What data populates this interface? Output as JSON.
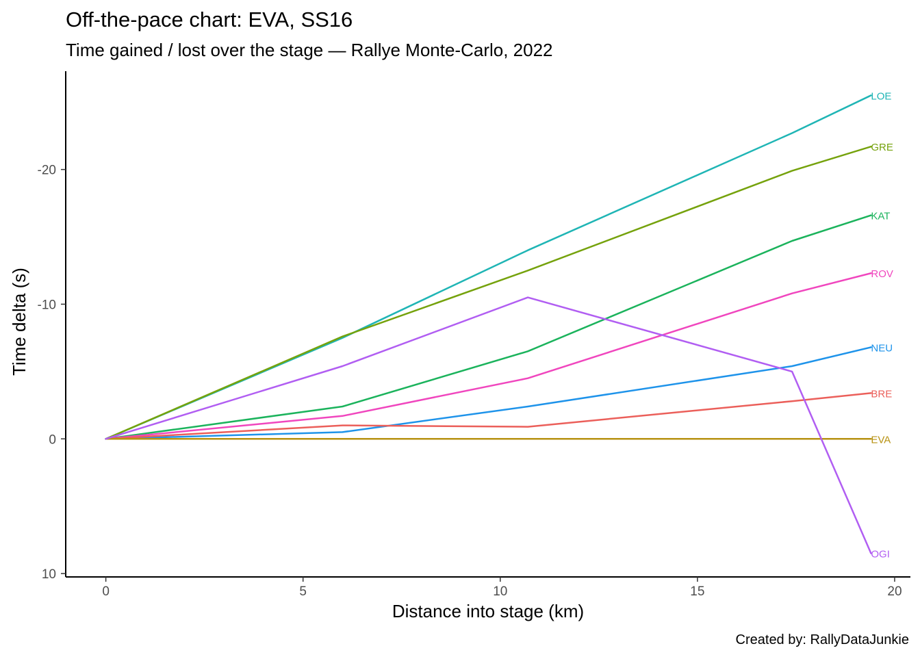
{
  "chart_data": {
    "type": "line",
    "title": "Off-the-pace chart: EVA, SS16",
    "subtitle": "Time gained / lost over the stage — Rallye Monte-Carlo, 2022",
    "xlabel": "Distance into stage (km)",
    "ylabel": "Time delta (s)",
    "caption": "Created by: RallyDataJunkie",
    "xlim": [
      -1,
      20.4
    ],
    "ylim": [
      10.2,
      -27.3
    ],
    "y_reversed": true,
    "x_ticks": [
      0,
      5,
      10,
      15,
      20
    ],
    "x_tick_labels": [
      "0",
      "5",
      "10",
      "15",
      "20"
    ],
    "y_ticks": [
      -20,
      -10,
      0,
      10
    ],
    "y_tick_labels": [
      "-20",
      "-10",
      "0",
      "10"
    ],
    "grid": false,
    "legend": "none",
    "series": [
      {
        "name": "LOE",
        "color": "#1FB5B5",
        "x": [
          0,
          6,
          10.7,
          17.4,
          19.4
        ],
        "y": [
          0,
          -7.5,
          -14.0,
          -22.7,
          -25.5
        ]
      },
      {
        "name": "GRE",
        "color": "#75A20C",
        "x": [
          0,
          6,
          10.7,
          17.4,
          19.4
        ],
        "y": [
          0,
          -7.6,
          -12.5,
          -19.9,
          -21.7
        ]
      },
      {
        "name": "KAT",
        "color": "#1BB35C",
        "x": [
          0,
          6,
          10.7,
          17.4,
          19.4
        ],
        "y": [
          0,
          -2.4,
          -6.5,
          -14.7,
          -16.6
        ]
      },
      {
        "name": "ROV",
        "color": "#F046BE",
        "x": [
          0,
          6,
          10.7,
          17.4,
          19.4
        ],
        "y": [
          0,
          -1.7,
          -4.5,
          -10.8,
          -12.3
        ]
      },
      {
        "name": "NEU",
        "color": "#1E93EA",
        "x": [
          0,
          6,
          10.7,
          17.4,
          19.4
        ],
        "y": [
          0,
          -0.5,
          -2.4,
          -5.4,
          -6.8
        ]
      },
      {
        "name": "BRE",
        "color": "#EB5F5A",
        "x": [
          0,
          6,
          10.7,
          17.4,
          19.4
        ],
        "y": [
          0,
          -1.0,
          -0.9,
          -2.8,
          -3.4
        ]
      },
      {
        "name": "EVA",
        "color": "#B79212",
        "x": [
          0,
          6,
          10.7,
          17.4,
          19.4
        ],
        "y": [
          0,
          0,
          0,
          0,
          0
        ]
      },
      {
        "name": "OGI",
        "color": "#B15EF2",
        "x": [
          0,
          6,
          10.7,
          17.4,
          19.4
        ],
        "y": [
          0,
          -5.4,
          -10.5,
          -5.0,
          8.5
        ]
      }
    ]
  }
}
